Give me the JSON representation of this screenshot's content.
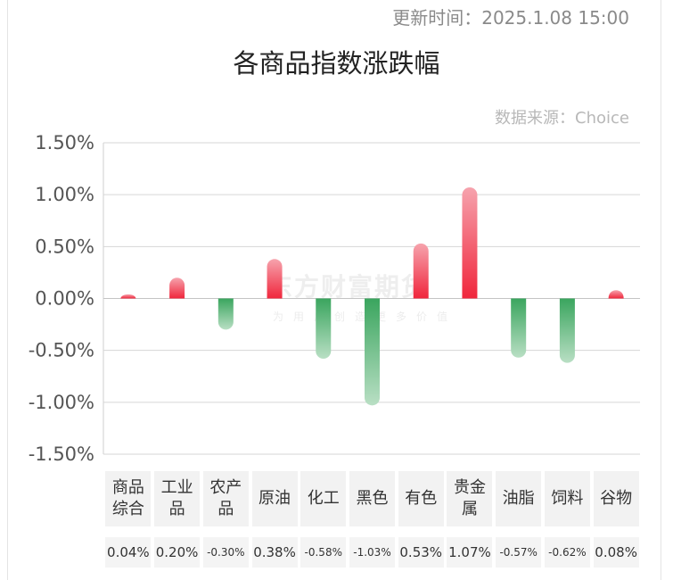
{
  "header": {
    "update_time": "更新时间：2025.1.08 15:00",
    "title": "各商品指数涨跌幅",
    "source": "数据来源：Choice"
  },
  "watermark": {
    "brand": "东方财富期货",
    "slogan": "为用户创造更多价值"
  },
  "colors": {
    "positive": "#f0263c",
    "negative": "#3aa55e",
    "grid": "#d6d6d6"
  },
  "chart_data": {
    "type": "bar",
    "title": "各商品指数涨跌幅",
    "xlabel": "",
    "ylabel": "",
    "ylim": [
      -1.5,
      1.5
    ],
    "yticks": [
      "1.50%",
      "1.00%",
      "0.50%",
      "0.00%",
      "-0.50%",
      "-1.00%",
      "-1.50%"
    ],
    "ytick_values": [
      1.5,
      1.0,
      0.5,
      0.0,
      -0.5,
      -1.0,
      -1.5
    ],
    "grid": true,
    "categories": [
      [
        "商品",
        "综合"
      ],
      [
        "工业",
        "品"
      ],
      [
        "农产",
        "品"
      ],
      [
        "原油"
      ],
      [
        "化工"
      ],
      [
        "黑色"
      ],
      [
        "有色"
      ],
      [
        "贵金",
        "属"
      ],
      [
        "油脂"
      ],
      [
        "饲料"
      ],
      [
        "谷物"
      ]
    ],
    "values": [
      0.04,
      0.2,
      -0.3,
      0.38,
      -0.58,
      -1.03,
      0.53,
      1.07,
      -0.57,
      -0.62,
      0.08
    ],
    "value_labels": [
      "0.04%",
      "0.20%",
      "-0.30%",
      "0.38%",
      "-0.58%",
      "-1.03%",
      "0.53%",
      "1.07%",
      "-0.57%",
      "-0.62%",
      "0.08%"
    ]
  }
}
